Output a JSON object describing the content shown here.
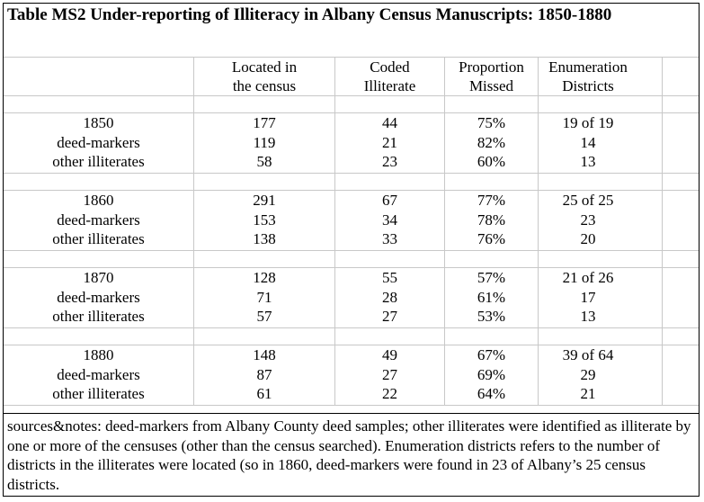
{
  "title": "Table MS2  Under-reporting of Illiteracy in Albany Census Manuscripts: 1850-1880",
  "headers": {
    "located_line1": "Located in",
    "located_line2": "the census",
    "coded_line1": "Coded",
    "coded_line2": "Illiterate",
    "proportion_line1": "Proportion",
    "proportion_line2": "Missed",
    "enum_line1": "Enumeration",
    "enum_line2": "Districts"
  },
  "groups": [
    {
      "rows": [
        {
          "label": "1850",
          "located": "177",
          "coded": "44",
          "missed": "75%",
          "districts": "19 of 19"
        },
        {
          "label": "deed-markers",
          "located": "119",
          "coded": "21",
          "missed": "82%",
          "districts": "14"
        },
        {
          "label": "other illiterates",
          "located": "58",
          "coded": "23",
          "missed": "60%",
          "districts": "13"
        }
      ]
    },
    {
      "rows": [
        {
          "label": "1860",
          "located": "291",
          "coded": "67",
          "missed": "77%",
          "districts": "25 of 25"
        },
        {
          "label": "deed-markers",
          "located": "153",
          "coded": "34",
          "missed": "78%",
          "districts": "23"
        },
        {
          "label": "other illiterates",
          "located": "138",
          "coded": "33",
          "missed": "76%",
          "districts": "20"
        }
      ]
    },
    {
      "rows": [
        {
          "label": "1870",
          "located": "128",
          "coded": "55",
          "missed": "57%",
          "districts": "21 of 26"
        },
        {
          "label": "deed-markers",
          "located": "71",
          "coded": "28",
          "missed": "61%",
          "districts": "17"
        },
        {
          "label": "other illiterates",
          "located": "57",
          "coded": "27",
          "missed": "53%",
          "districts": "13"
        }
      ]
    },
    {
      "rows": [
        {
          "label": "1880",
          "located": "148",
          "coded": "49",
          "missed": "67%",
          "districts": "39 of 64"
        },
        {
          "label": "deed-markers",
          "located": "87",
          "coded": "27",
          "missed": "69%",
          "districts": "29"
        },
        {
          "label": "other illiterates",
          "located": "61",
          "coded": "22",
          "missed": "64%",
          "districts": "21"
        }
      ]
    }
  ],
  "notes": "sources&notes: deed-markers from Albany County deed samples; other illiterates were identified as illiterate by one or more of the censuses (other than the census searched). Enumeration districts refers to the number of districts in the illiterates were located (so in 1860, deed-markers were found in 23 of Albany’s 25 census districts."
}
